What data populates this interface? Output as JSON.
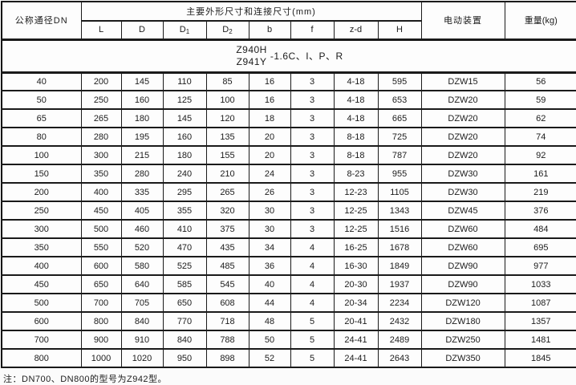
{
  "table": {
    "header": {
      "dn": "公称通径DN",
      "dims_group": "主要外形尺寸和连接尺寸(mm)",
      "dim_cols": [
        {
          "main": "L"
        },
        {
          "main": "D"
        },
        {
          "main": "D",
          "sub": "1"
        },
        {
          "main": "D",
          "sub": "2"
        },
        {
          "main": "b"
        },
        {
          "main": "f"
        },
        {
          "main": "z-d"
        },
        {
          "main": "H"
        }
      ],
      "actuator": "电动装置",
      "weight": "重量(kg)"
    },
    "model_row": {
      "line1": "Z940H",
      "line2": "Z941Y",
      "suffix": "-1.6C、I、P、R"
    },
    "columns": [
      "dn",
      "L",
      "D",
      "D1",
      "D2",
      "b",
      "f",
      "z-d",
      "H",
      "actuator",
      "weight"
    ],
    "rows": [
      [
        "40",
        "200",
        "145",
        "110",
        "85",
        "16",
        "3",
        "4-18",
        "595",
        "DZW15",
        "56"
      ],
      [
        "50",
        "250",
        "160",
        "125",
        "100",
        "16",
        "3",
        "4-18",
        "653",
        "DZW20",
        "59"
      ],
      [
        "65",
        "265",
        "180",
        "145",
        "120",
        "18",
        "3",
        "4-18",
        "665",
        "DZW20",
        "62"
      ],
      [
        "80",
        "280",
        "195",
        "160",
        "135",
        "20",
        "3",
        "8-18",
        "725",
        "DZW20",
        "74"
      ],
      [
        "100",
        "300",
        "215",
        "180",
        "155",
        "20",
        "3",
        "8-18",
        "787",
        "DZW20",
        "92"
      ],
      [
        "150",
        "350",
        "280",
        "240",
        "210",
        "24",
        "3",
        "8-23",
        "955",
        "DZW30",
        "161"
      ],
      [
        "200",
        "400",
        "335",
        "295",
        "265",
        "26",
        "3",
        "12-23",
        "1105",
        "DZW30",
        "219"
      ],
      [
        "250",
        "450",
        "405",
        "355",
        "320",
        "30",
        "3",
        "12-25",
        "1343",
        "DZW45",
        "376"
      ],
      [
        "300",
        "500",
        "460",
        "410",
        "375",
        "30",
        "3",
        "12-25",
        "1516",
        "DZW60",
        "484"
      ],
      [
        "350",
        "550",
        "520",
        "470",
        "435",
        "34",
        "4",
        "16-25",
        "1678",
        "DZW60",
        "695"
      ],
      [
        "400",
        "600",
        "580",
        "525",
        "485",
        "36",
        "4",
        "16-30",
        "1849",
        "DZW90",
        "977"
      ],
      [
        "450",
        "650",
        "640",
        "585",
        "545",
        "40",
        "4",
        "20-30",
        "1937",
        "DZW90",
        "1033"
      ],
      [
        "500",
        "700",
        "705",
        "650",
        "608",
        "44",
        "4",
        "20-34",
        "2234",
        "DZW120",
        "1087"
      ],
      [
        "600",
        "800",
        "840",
        "770",
        "718",
        "48",
        "5",
        "20-41",
        "2432",
        "DZW180",
        "1357"
      ],
      [
        "700",
        "900",
        "910",
        "840",
        "788",
        "50",
        "5",
        "24-41",
        "2489",
        "DZW250",
        "1481"
      ],
      [
        "800",
        "1000",
        "1020",
        "950",
        "898",
        "52",
        "5",
        "24-41",
        "2643",
        "DZW350",
        "1845"
      ]
    ],
    "note": "注：DN700、DN800的型号为Z942型。"
  }
}
